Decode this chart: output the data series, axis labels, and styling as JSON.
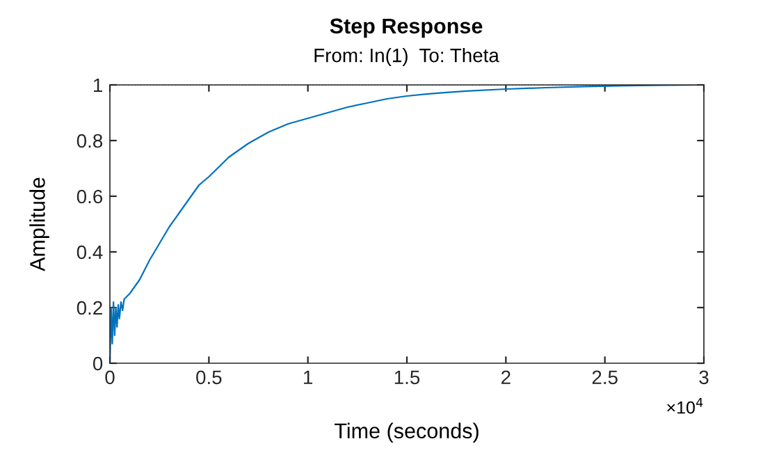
{
  "chart_data": {
    "type": "line",
    "title": "Step Response",
    "subtitle": "From: In(1)  To: Theta",
    "xlabel": "Time (seconds)",
    "ylabel": "Amplitude",
    "annotations": [
      "×10$^{4}$"
    ],
    "series": [
      {
        "color": "#0072bd",
        "x": [
          0,
          0.006,
          0.012,
          0.018,
          0.024,
          0.03,
          0.036,
          0.042,
          0.048,
          0.056,
          0.064,
          0.072,
          0.1,
          0.15,
          0.2,
          0.25,
          0.3,
          0.35,
          0.4,
          0.45,
          0.5,
          0.6,
          0.7,
          0.8,
          0.9,
          1.0,
          1.1,
          1.2,
          1.3,
          1.4,
          1.5,
          1.6,
          1.7,
          1.8,
          2.0,
          2.2,
          2.4,
          2.6,
          2.8,
          3.0
        ],
        "values": [
          0,
          0.2,
          0.07,
          0.22,
          0.1,
          0.2,
          0.13,
          0.21,
          0.16,
          0.22,
          0.19,
          0.23,
          0.25,
          0.3,
          0.37,
          0.43,
          0.49,
          0.54,
          0.59,
          0.64,
          0.67,
          0.74,
          0.79,
          0.83,
          0.86,
          0.88,
          0.9,
          0.92,
          0.935,
          0.95,
          0.96,
          0.967,
          0.973,
          0.978,
          0.985,
          0.99,
          0.994,
          0.997,
          0.999,
          1.0
        ]
      }
    ],
    "ref_lines": [
      {
        "axis": "y",
        "value": 1,
        "color": "#000000",
        "line_style": "dotted"
      }
    ],
    "xlim": [
      0,
      3
    ],
    "xticks": [
      0,
      0.5,
      1,
      1.5,
      2,
      2.5,
      3
    ],
    "ylim": [
      0,
      1
    ],
    "yticks": [
      0,
      0.2,
      0.4,
      0.6,
      0.8,
      1
    ],
    "grid": false,
    "legend": false,
    "marker": "none",
    "line_style": "solid"
  }
}
